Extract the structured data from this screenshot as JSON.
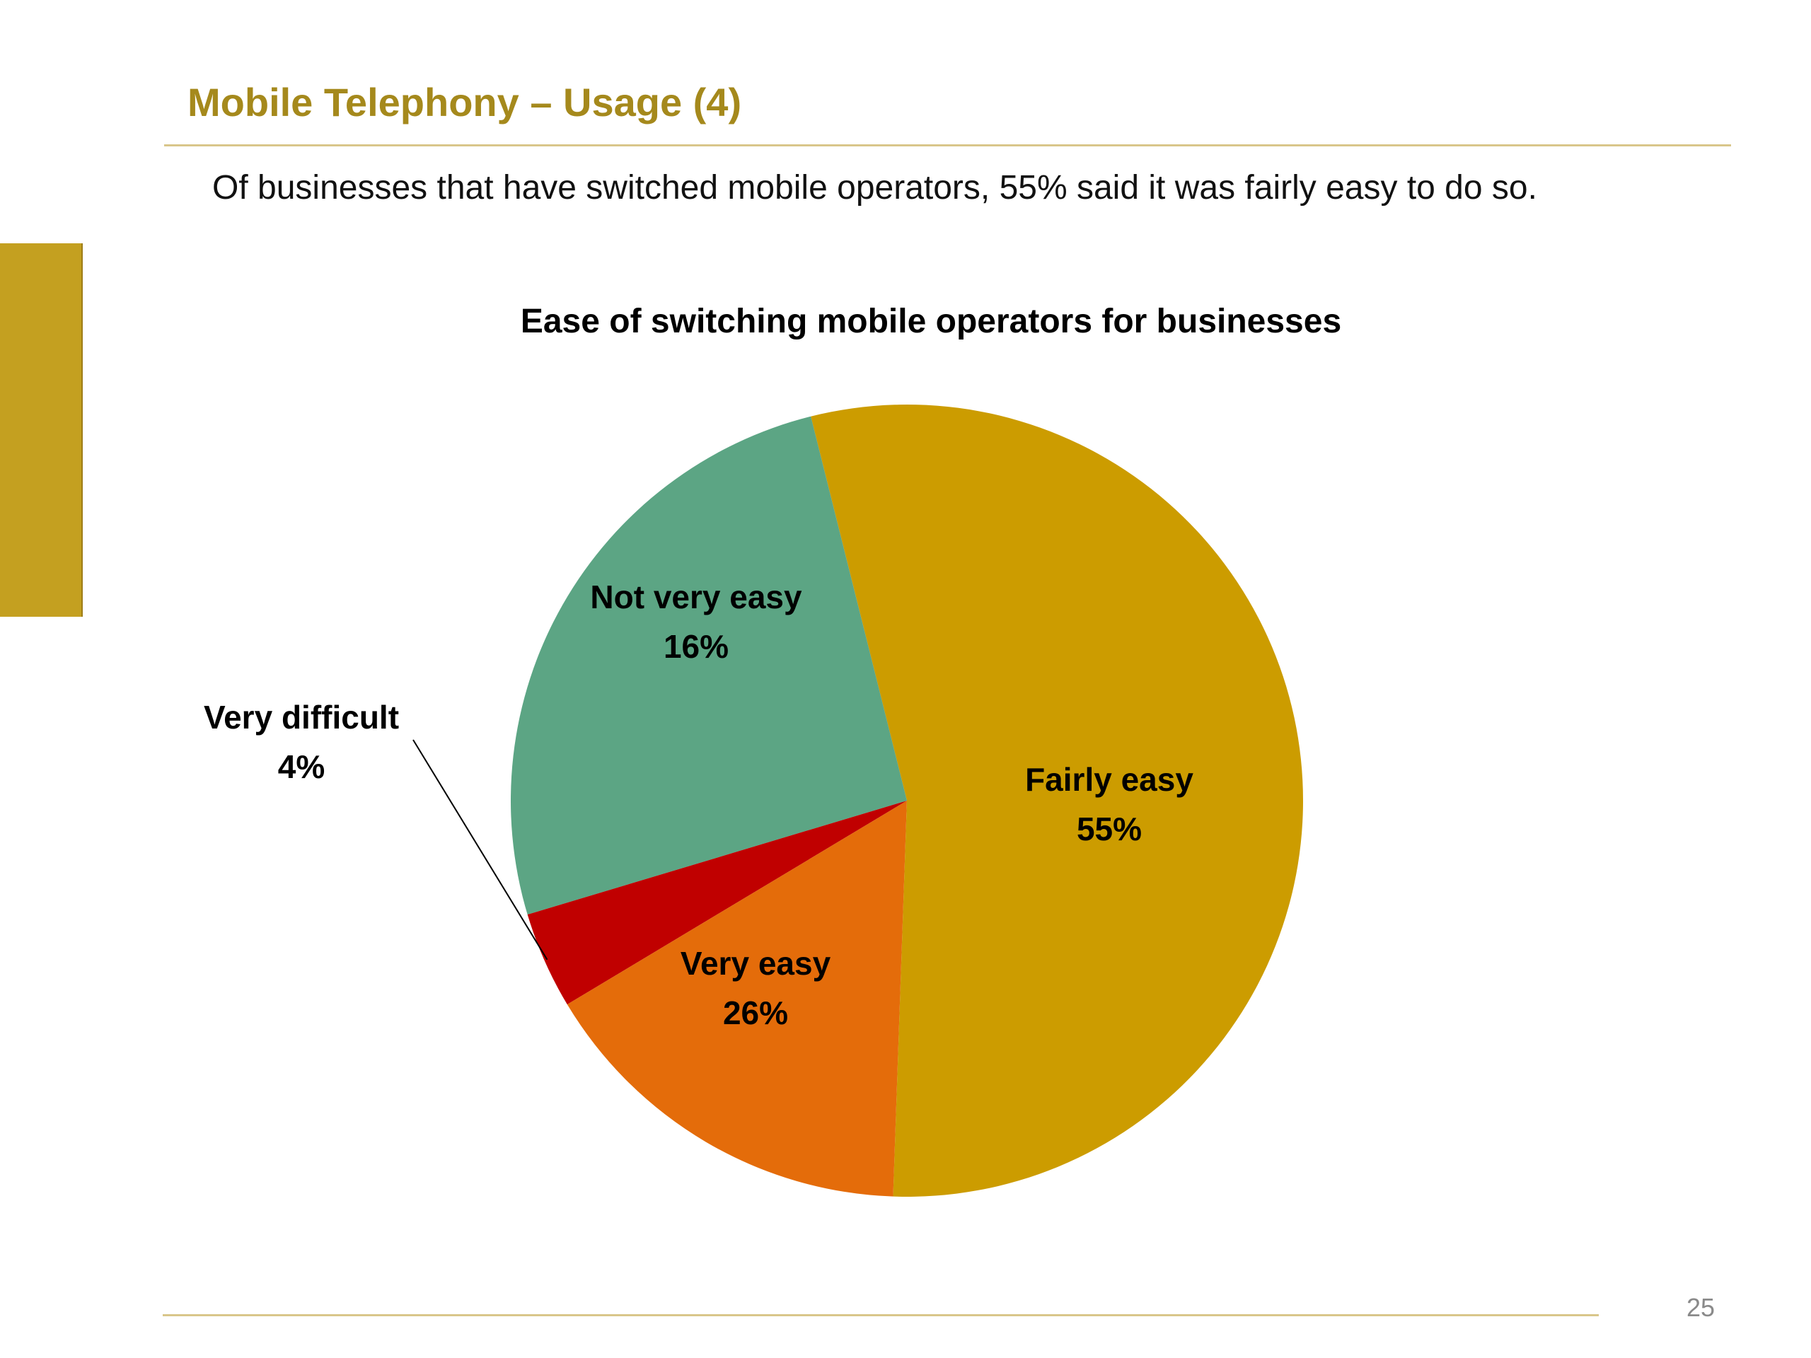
{
  "slide": {
    "title": "Mobile Telephony – Usage (4)",
    "subtitle": "Of businesses that have switched mobile operators, 55% said it was fairly easy to do so.",
    "page_number": "25",
    "accent_color": "#A5891C"
  },
  "chart_data": {
    "type": "pie",
    "title": "Ease of switching mobile operators for businesses",
    "categories": [
      "Fairly easy",
      "Very easy",
      "Very difficult",
      "Not very easy"
    ],
    "values": [
      55,
      26,
      4,
      16
    ],
    "labels": [
      "55%",
      "26%",
      "4%",
      "16%"
    ],
    "colors": [
      "#CC9C00",
      "#5CA584",
      "#C00000",
      "#E46C0A"
    ],
    "legend": "none",
    "data_labels": "category name and percent on slices; leader line for Very difficult"
  }
}
